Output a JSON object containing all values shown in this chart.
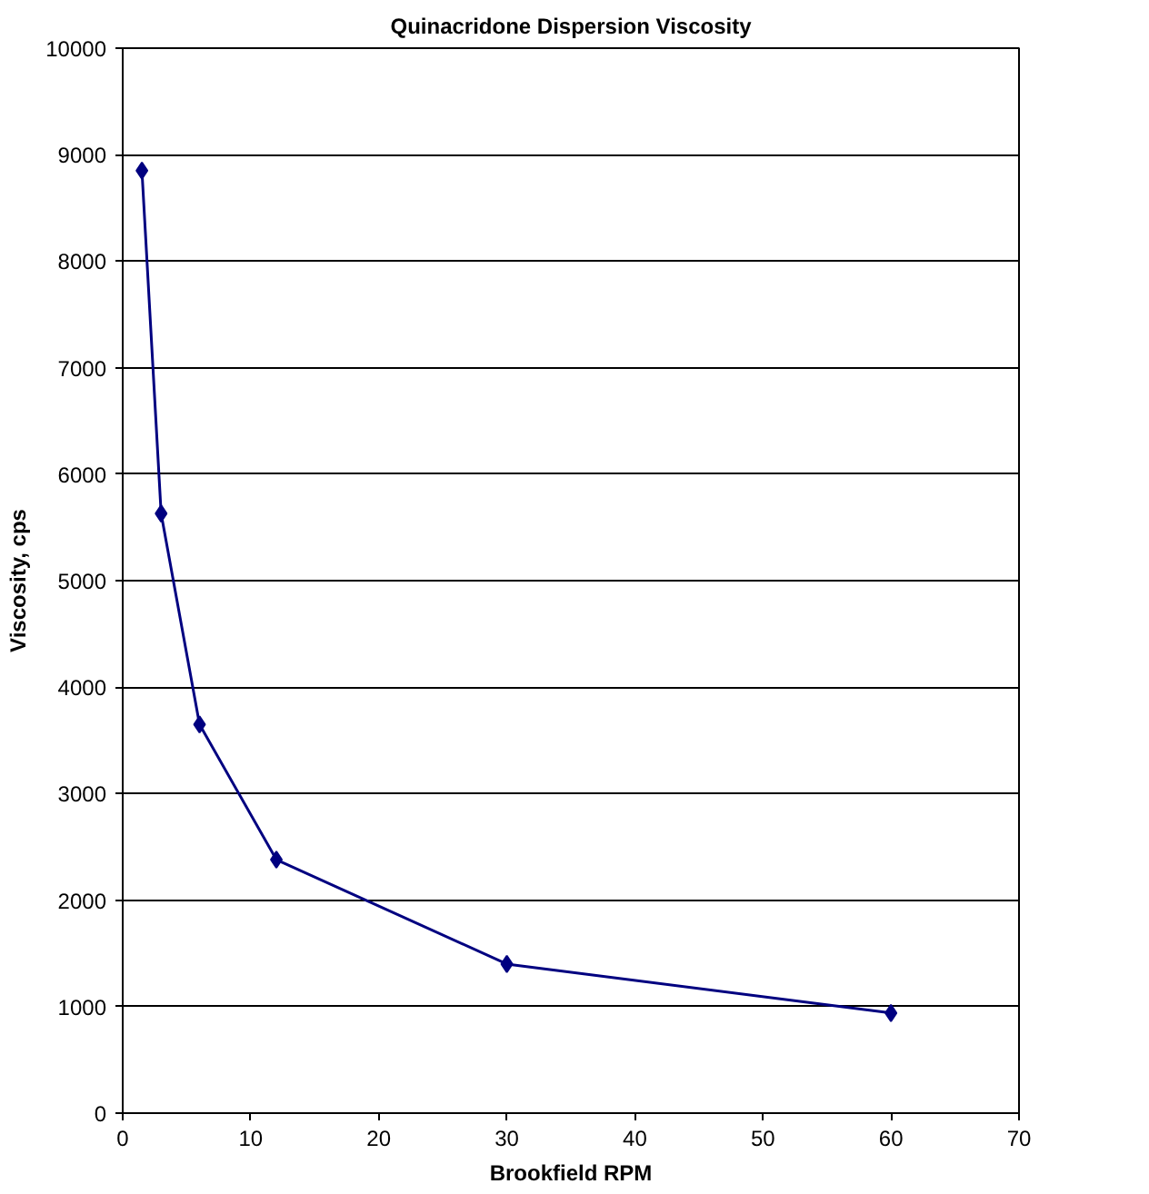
{
  "chart_data": {
    "type": "line",
    "title": "Quinacridone Dispersion Viscosity",
    "xlabel": "Brookfield RPM",
    "ylabel": "Viscosity, cps",
    "x": [
      1.5,
      3,
      6,
      12,
      30,
      60
    ],
    "series": [
      {
        "color": "#000080",
        "values": [
          8850,
          5630,
          3650,
          2380,
          1400,
          940
        ]
      }
    ],
    "xlim": [
      0,
      70
    ],
    "xticks": [
      0,
      10,
      20,
      30,
      40,
      50,
      60,
      70
    ],
    "ylim": [
      0,
      10000
    ],
    "yticks": [
      0,
      1000,
      2000,
      3000,
      4000,
      5000,
      6000,
      7000,
      8000,
      9000,
      10000
    ],
    "grid": "y",
    "marker": "diamond",
    "line_style": "solid"
  }
}
